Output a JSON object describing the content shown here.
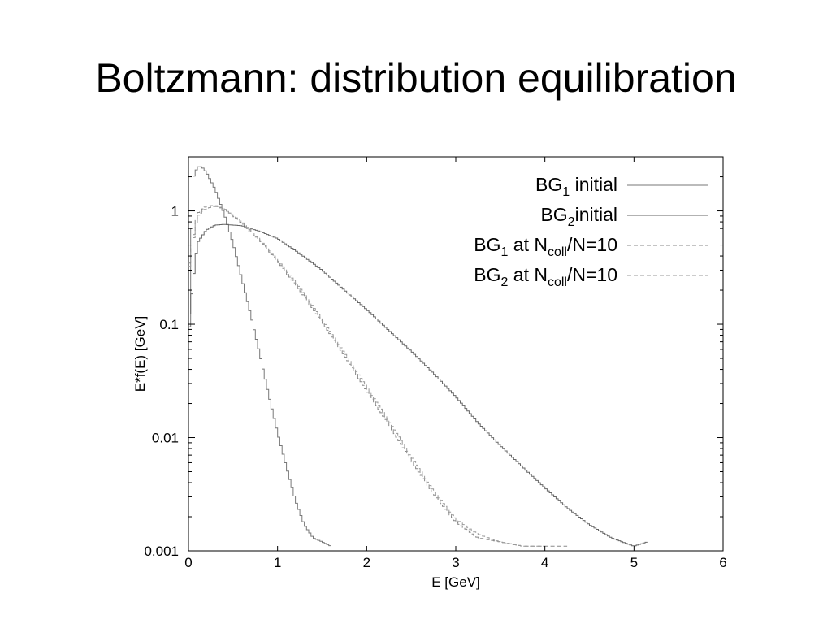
{
  "slide": {
    "title": "Boltzmann: distribution equilibration"
  },
  "chart_data": {
    "type": "line",
    "style": "histogram-steps",
    "title": "",
    "xlabel": "E [GeV]",
    "ylabel": "E*f(E) [GeV]",
    "xlim": [
      0,
      6
    ],
    "ylim": [
      0.001,
      3
    ],
    "yscale": "log",
    "grid": false,
    "legend_position": "top-right",
    "x_ticks": [
      "0",
      "1",
      "2",
      "3",
      "4",
      "5",
      "6"
    ],
    "y_ticks": [
      {
        "value": 1,
        "label": "1"
      },
      {
        "value": 0.1,
        "label": "0.1"
      },
      {
        "value": 0.01,
        "label": "0.01"
      },
      {
        "value": 0.001,
        "label": "0.001"
      }
    ],
    "series": [
      {
        "name": "BG1 initial",
        "legend": {
          "base": "BG",
          "sub": "1",
          "rest": " initial"
        },
        "dash": "solid",
        "color": "#777777",
        "x": [
          0.0,
          0.05,
          0.1,
          0.15,
          0.2,
          0.3,
          0.4,
          0.5,
          0.6,
          0.7,
          0.8,
          0.9,
          1.0,
          1.1,
          1.2,
          1.3,
          1.4,
          1.5,
          1.6
        ],
        "y": [
          0.035,
          1.9,
          2.45,
          2.45,
          2.2,
          1.55,
          0.95,
          0.52,
          0.25,
          0.12,
          0.055,
          0.024,
          0.011,
          0.0055,
          0.0028,
          0.0017,
          0.0013,
          0.0012,
          0.0011
        ]
      },
      {
        "name": "BG2initial",
        "legend": {
          "base": "BG",
          "sub": "2",
          "rest": "initial"
        },
        "dash": "solid",
        "color": "#666666",
        "x": [
          0.0,
          0.1,
          0.2,
          0.3,
          0.4,
          0.6,
          0.8,
          1.0,
          1.25,
          1.5,
          1.75,
          2.0,
          2.25,
          2.5,
          2.75,
          3.0,
          3.25,
          3.5,
          3.75,
          4.0,
          4.25,
          4.5,
          4.75,
          5.0,
          5.15
        ],
        "y": [
          0.1,
          0.52,
          0.68,
          0.75,
          0.76,
          0.74,
          0.66,
          0.57,
          0.42,
          0.3,
          0.2,
          0.135,
          0.088,
          0.058,
          0.037,
          0.023,
          0.0135,
          0.0085,
          0.0055,
          0.0036,
          0.0024,
          0.0017,
          0.0013,
          0.0011,
          0.0012
        ]
      },
      {
        "name": "BG1 at Ncoll/N=10",
        "legend": {
          "base": "BG",
          "sub": "1",
          "rest": " at N",
          "sub2": "coll",
          "rest2": "/N=10"
        },
        "dash": "dashed",
        "color": "#888888",
        "x": [
          0.0,
          0.1,
          0.2,
          0.3,
          0.4,
          0.6,
          0.8,
          1.0,
          1.25,
          1.5,
          1.75,
          2.0,
          2.25,
          2.5,
          2.75,
          3.0,
          3.25,
          3.5,
          3.75,
          4.0,
          4.25
        ],
        "y": [
          0.3,
          0.95,
          1.1,
          1.12,
          1.05,
          0.78,
          0.55,
          0.36,
          0.2,
          0.105,
          0.053,
          0.026,
          0.013,
          0.0063,
          0.0032,
          0.0018,
          0.0013,
          0.0012,
          0.0011,
          0.0011,
          0.0011
        ]
      },
      {
        "name": "BG2 at Ncoll/N=10",
        "legend": {
          "base": "BG",
          "sub": "2",
          "rest": " at N",
          "sub2": "coll",
          "rest2": "/N=10"
        },
        "dash": "dashed",
        "color": "#999999",
        "x": [
          0.0,
          0.1,
          0.2,
          0.3,
          0.4,
          0.6,
          0.8,
          1.0,
          1.25,
          1.5,
          1.75,
          2.0,
          2.25,
          2.5,
          2.75,
          3.0,
          3.25,
          3.5,
          3.75,
          4.0
        ],
        "y": [
          0.28,
          0.9,
          1.05,
          1.1,
          1.04,
          0.8,
          0.56,
          0.37,
          0.21,
          0.11,
          0.056,
          0.028,
          0.014,
          0.0068,
          0.0034,
          0.0019,
          0.0014,
          0.0012,
          0.0011,
          0.0011
        ]
      }
    ]
  }
}
